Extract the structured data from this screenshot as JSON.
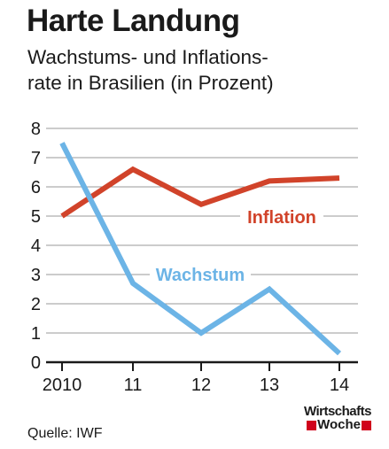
{
  "title": "Harte Landung",
  "subtitle_line1": "Wachstums- und Inflations-",
  "subtitle_line2": "rate in Brasilien (in Prozent)",
  "source": "Quelle: IWF",
  "logo_line1": "Wirtschafts",
  "logo_line2": "Woche",
  "colors": {
    "inflation": "#d1432a",
    "wachstum": "#6cb4e6",
    "grid": "#9a9a9a",
    "axis": "#1a1a1a"
  },
  "chart_data": {
    "type": "line",
    "categories": [
      "2010",
      "11",
      "12",
      "13",
      "14"
    ],
    "ylim": [
      0,
      8
    ],
    "yticks": [
      "0",
      "1",
      "2",
      "3",
      "4",
      "5",
      "6",
      "7",
      "8"
    ],
    "grid": true,
    "series": [
      {
        "name": "Inflation",
        "values": [
          5.0,
          6.6,
          5.4,
          6.2,
          6.3
        ]
      },
      {
        "name": "Wachstum",
        "values": [
          7.5,
          2.7,
          1.0,
          2.5,
          0.3
        ]
      }
    ]
  }
}
